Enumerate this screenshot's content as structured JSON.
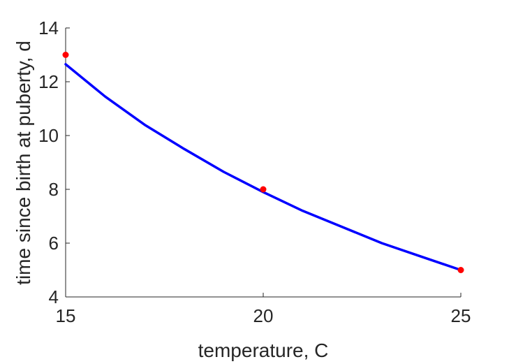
{
  "chart_data": {
    "type": "scatter",
    "title": "",
    "xlabel": "temperature, C",
    "ylabel": "time since birth at puberty, d",
    "xlim": [
      15,
      25
    ],
    "ylim": [
      4,
      14
    ],
    "xticks": [
      15,
      20,
      25
    ],
    "yticks": [
      4,
      6,
      8,
      10,
      12,
      14
    ],
    "xtick_labels": [
      "15",
      "20",
      "25"
    ],
    "ytick_labels": [
      "4",
      "6",
      "8",
      "10",
      "12",
      "14"
    ],
    "grid": false,
    "legend": "none",
    "series": [
      {
        "kind": "points",
        "color": "#ff0000",
        "x": [
          15,
          20,
          25
        ],
        "y": [
          13,
          8,
          5
        ]
      },
      {
        "kind": "line",
        "color": "#0000ff",
        "x": [
          15,
          16,
          17,
          18,
          19,
          20,
          21,
          22,
          23,
          24,
          25
        ],
        "y": [
          12.65,
          11.45,
          10.4,
          9.5,
          8.65,
          7.9,
          7.2,
          6.6,
          6.0,
          5.5,
          5.0
        ]
      }
    ]
  }
}
